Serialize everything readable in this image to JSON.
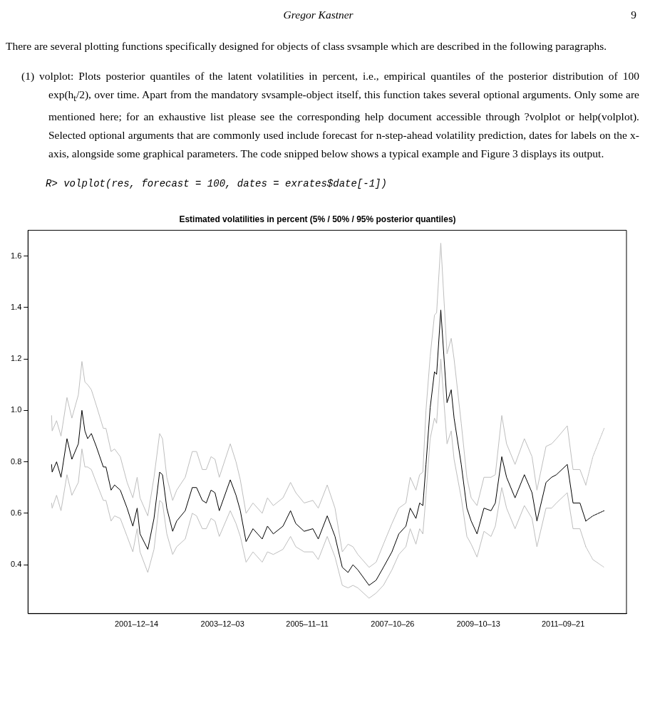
{
  "chart_data": {
    "type": "line",
    "title": "Estimated volatilities in percent (5% / 50% / 95% posterior quantiles)",
    "annotations": [
      "Gregor Kastner",
      "9",
      "There are several plotting functions specifically designed for objects of class svsample which are described in the following paragraphs.",
      "(1) volplot: Plots posterior quantiles of the latent volatilities in percent, i.e., empirical quantiles of the posterior distribution of 100 exp(h$_{t}$/2), over time. Apart from the mandatory svsample-object itself, this function takes several optional arguments. Only some are mentioned here; for an exhaustive list please see the corresponding help document accessible through ?volplot or help(volplot). Selected optional arguments that are commonly used include forecast for n-step-ahead volatility prediction, dates for labels on the x-axis, alongside some graphical parameters. The code snipped below shows a typical example and Figure 3 displays its output.",
      "R> volplot(res, forecast = 100, dates = exrates$date[-1])"
    ],
    "marker": "none",
    "xlim": [
      "1999-06-20",
      "2013-03-04"
    ],
    "xticks": [
      {
        "value": "2001-12-14",
        "label": "2001–12–14"
      },
      {
        "value": "2003-12-03",
        "label": "2003–12–03"
      },
      {
        "value": "2005-11-11",
        "label": "2005–11–11"
      },
      {
        "value": "2007-10-26",
        "label": "2007–10–26"
      },
      {
        "value": "2009-10-13",
        "label": "2009–10–13"
      },
      {
        "value": "2011-09-21",
        "label": "2011–09–21"
      }
    ],
    "ylim": [
      0.21,
      1.7
    ],
    "yticks": [
      0.4,
      0.6,
      0.8,
      {
        "value": 1,
        "label": "1.0"
      },
      1.2,
      1.4,
      1.6
    ],
    "series": [
      {
        "color": "#bebebe",
        "line_style": "solid",
        "x": [
          "2000-01-03",
          "2000-01-08",
          "2000-02-14",
          "2000-03-22",
          "2000-05-11",
          "2000-06-21",
          "2000-08-14",
          "2000-09-13",
          "2000-10-08",
          "2000-10-31",
          "2000-12-01",
          "2001-01-11",
          "2001-03-11",
          "2001-04-02",
          "2001-05-15",
          "2001-06-13",
          "2001-07-31",
          "2001-09-26",
          "2001-11-13",
          "2001-12-19",
          "2002-01-12",
          "2002-03-18",
          "2002-05-09",
          "2002-06-25",
          "2002-07-19",
          "2002-08-24",
          "2002-10-12",
          "2002-11-15",
          "2003-01-25",
          "2003-03-25",
          "2003-04-30",
          "2003-06-17",
          "2003-07-20",
          "2003-08-29",
          "2003-10-01",
          "2003-11-06",
          "2004-02-06",
          "2004-03-25",
          "2004-04-30",
          "2004-06-17",
          "2004-08-14",
          "2004-10-30",
          "2004-12-13",
          "2005-01-31",
          "2005-04-22",
          "2005-06-24",
          "2005-08-07",
          "2005-10-16",
          "2005-12-28",
          "2006-02-11",
          "2006-04-27",
          "2006-07-01",
          "2006-08-31",
          "2006-10-18",
          "2006-11-28",
          "2007-01-08",
          "2007-04-12",
          "2007-06-10",
          "2007-08-10",
          "2007-10-20",
          "2007-12-17",
          "2008-02-14",
          "2008-03-21",
          "2008-05-08",
          "2008-06-08",
          "2008-07-05",
          "2008-07-31",
          "2008-09-04",
          "2008-10-10",
          "2008-10-28",
          "2008-12-02",
          "2009-01-23",
          "2009-02-27",
          "2009-03-23",
          "2009-05-22",
          "2009-07-08",
          "2009-08-13",
          "2009-10-01",
          "2009-11-28",
          "2010-01-26",
          "2010-03-03",
          "2010-04-26",
          "2010-06-05",
          "2010-08-15",
          "2010-11-01",
          "2011-01-04",
          "2011-02-14",
          "2011-05-01",
          "2011-06-17",
          "2011-07-27",
          "2011-10-26",
          "2011-12-13",
          "2012-02-09",
          "2012-03-29"
        ],
        "values": [
          0.98,
          0.92,
          0.96,
          0.9,
          1.05,
          0.97,
          1.06,
          1.19,
          1.11,
          1.1,
          1.08,
          1.02,
          0.93,
          0.93,
          0.84,
          0.85,
          0.82,
          0.72,
          0.66,
          0.74,
          0.66,
          0.59,
          0.74,
          0.91,
          0.89,
          0.74,
          0.65,
          0.69,
          0.74,
          0.84,
          0.84,
          0.77,
          0.77,
          0.82,
          0.81,
          0.74,
          0.87,
          0.8,
          0.73,
          0.6,
          0.64,
          0.6,
          0.66,
          0.63,
          0.66,
          0.72,
          0.68,
          0.64,
          0.65,
          0.62,
          0.71,
          0.62,
          0.45,
          0.48,
          0.47,
          0.44,
          0.39,
          0.41,
          0.48,
          0.56,
          0.62,
          0.64,
          0.74,
          0.69,
          0.75,
          0.76,
          1.0,
          1.21,
          1.37,
          1.38,
          1.65,
          1.22,
          1.28,
          1.2,
          0.95,
          0.74,
          0.66,
          0.63,
          0.74,
          0.74,
          0.75,
          0.98,
          0.87,
          0.79,
          0.89,
          0.82,
          0.69,
          0.86,
          0.87,
          0.89,
          0.94,
          0.77,
          0.77,
          0.71
        ]
      },
      {
        "color": "#000000",
        "line_style": "solid",
        "x": [
          "2000-01-03",
          "2000-01-08",
          "2000-02-14",
          "2000-03-22",
          "2000-05-11",
          "2000-06-21",
          "2000-08-14",
          "2000-09-13",
          "2000-10-08",
          "2000-10-31",
          "2000-12-01",
          "2001-01-11",
          "2001-03-11",
          "2001-04-02",
          "2001-05-15",
          "2001-06-13",
          "2001-07-31",
          "2001-09-26",
          "2001-11-13",
          "2001-12-19",
          "2002-01-12",
          "2002-03-18",
          "2002-05-09",
          "2002-06-25",
          "2002-07-19",
          "2002-08-24",
          "2002-10-12",
          "2002-11-15",
          "2003-01-25",
          "2003-03-25",
          "2003-04-30",
          "2003-06-17",
          "2003-07-20",
          "2003-08-29",
          "2003-10-01",
          "2003-11-06",
          "2004-02-06",
          "2004-03-25",
          "2004-04-30",
          "2004-06-17",
          "2004-08-14",
          "2004-10-30",
          "2004-12-13",
          "2005-01-31",
          "2005-04-22",
          "2005-06-24",
          "2005-08-07",
          "2005-10-16",
          "2005-12-28",
          "2006-02-11",
          "2006-04-27",
          "2006-07-01",
          "2006-08-31",
          "2006-10-18",
          "2006-11-28",
          "2007-01-08",
          "2007-04-12",
          "2007-06-10",
          "2007-08-10",
          "2007-10-20",
          "2007-12-17",
          "2008-02-14",
          "2008-03-21",
          "2008-05-08",
          "2008-06-08",
          "2008-07-05",
          "2008-07-31",
          "2008-09-04",
          "2008-10-10",
          "2008-10-28",
          "2008-12-02",
          "2009-01-23",
          "2009-02-27",
          "2009-03-23",
          "2009-05-22",
          "2009-07-08",
          "2009-08-13",
          "2009-10-01",
          "2009-11-28",
          "2010-01-26",
          "2010-03-03",
          "2010-04-26",
          "2010-06-05",
          "2010-08-15",
          "2010-11-01",
          "2011-01-04",
          "2011-02-14",
          "2011-05-01",
          "2011-06-17",
          "2011-07-27",
          "2011-10-26",
          "2011-12-13",
          "2012-02-09",
          "2012-03-29"
        ],
        "values": [
          0.79,
          0.76,
          0.8,
          0.74,
          0.89,
          0.81,
          0.87,
          1.0,
          0.92,
          0.89,
          0.91,
          0.86,
          0.78,
          0.78,
          0.69,
          0.71,
          0.69,
          0.62,
          0.55,
          0.62,
          0.52,
          0.46,
          0.58,
          0.76,
          0.75,
          0.62,
          0.53,
          0.57,
          0.61,
          0.7,
          0.7,
          0.65,
          0.64,
          0.69,
          0.68,
          0.61,
          0.73,
          0.67,
          0.61,
          0.49,
          0.54,
          0.5,
          0.55,
          0.52,
          0.55,
          0.61,
          0.56,
          0.53,
          0.54,
          0.5,
          0.59,
          0.51,
          0.39,
          0.37,
          0.4,
          0.38,
          0.32,
          0.34,
          0.39,
          0.45,
          0.52,
          0.55,
          0.62,
          0.58,
          0.64,
          0.63,
          0.79,
          1.01,
          1.15,
          1.14,
          1.39,
          1.03,
          1.08,
          0.97,
          0.79,
          0.62,
          0.57,
          0.52,
          0.62,
          0.61,
          0.64,
          0.82,
          0.74,
          0.66,
          0.75,
          0.68,
          0.57,
          0.72,
          0.74,
          0.75,
          0.79,
          0.64,
          0.64,
          0.57
        ]
      },
      {
        "color": "#bebebe",
        "line_style": "solid",
        "x": [
          "2000-01-03",
          "2000-01-08",
          "2000-02-14",
          "2000-03-22",
          "2000-05-11",
          "2000-06-21",
          "2000-08-14",
          "2000-09-13",
          "2000-10-08",
          "2000-10-31",
          "2000-12-01",
          "2001-01-11",
          "2001-03-11",
          "2001-04-02",
          "2001-05-15",
          "2001-06-13",
          "2001-07-31",
          "2001-09-26",
          "2001-11-13",
          "2001-12-19",
          "2002-01-12",
          "2002-03-18",
          "2002-05-09",
          "2002-06-25",
          "2002-07-19",
          "2002-08-24",
          "2002-10-12",
          "2002-11-15",
          "2003-01-25",
          "2003-03-25",
          "2003-04-30",
          "2003-06-17",
          "2003-07-20",
          "2003-08-29",
          "2003-10-01",
          "2003-11-06",
          "2004-02-06",
          "2004-03-25",
          "2004-04-30",
          "2004-06-17",
          "2004-08-14",
          "2004-10-30",
          "2004-12-13",
          "2005-01-31",
          "2005-04-22",
          "2005-06-24",
          "2005-08-07",
          "2005-10-16",
          "2005-12-28",
          "2006-02-11",
          "2006-04-27",
          "2006-07-01",
          "2006-08-31",
          "2006-10-18",
          "2006-11-28",
          "2007-01-08",
          "2007-04-12",
          "2007-06-10",
          "2007-08-10",
          "2007-10-20",
          "2007-12-17",
          "2008-02-14",
          "2008-03-21",
          "2008-05-08",
          "2008-06-08",
          "2008-07-05",
          "2008-07-31",
          "2008-09-04",
          "2008-10-10",
          "2008-10-28",
          "2008-12-02",
          "2009-01-23",
          "2009-02-27",
          "2009-03-23",
          "2009-05-22",
          "2009-07-08",
          "2009-08-13",
          "2009-10-01",
          "2009-11-28",
          "2010-01-26",
          "2010-03-03",
          "2010-04-26",
          "2010-06-05",
          "2010-08-15",
          "2010-11-01",
          "2011-01-04",
          "2011-02-14",
          "2011-05-01",
          "2011-06-17",
          "2011-07-27",
          "2011-10-26",
          "2011-12-13",
          "2012-02-09",
          "2012-03-29"
        ],
        "values": [
          0.64,
          0.62,
          0.67,
          0.61,
          0.75,
          0.67,
          0.72,
          0.85,
          0.78,
          0.78,
          0.77,
          0.72,
          0.65,
          0.65,
          0.57,
          0.59,
          0.58,
          0.51,
          0.45,
          0.54,
          0.45,
          0.37,
          0.46,
          0.65,
          0.64,
          0.52,
          0.44,
          0.47,
          0.5,
          0.6,
          0.59,
          0.54,
          0.54,
          0.58,
          0.57,
          0.51,
          0.61,
          0.56,
          0.51,
          0.41,
          0.45,
          0.41,
          0.45,
          0.44,
          0.46,
          0.51,
          0.47,
          0.45,
          0.45,
          0.42,
          0.51,
          0.43,
          0.32,
          0.31,
          0.32,
          0.31,
          0.27,
          0.29,
          0.32,
          0.38,
          0.44,
          0.47,
          0.54,
          0.48,
          0.54,
          0.52,
          0.67,
          0.89,
          0.97,
          0.95,
          1.2,
          0.87,
          0.92,
          0.81,
          0.66,
          0.51,
          0.48,
          0.43,
          0.53,
          0.51,
          0.55,
          0.7,
          0.62,
          0.54,
          0.63,
          0.58,
          0.47,
          0.62,
          0.62,
          0.64,
          0.68,
          0.54,
          0.54,
          0.47
        ]
      },
      {
        "color": "#bebebe",
        "line_style": "dotted",
        "x": [
          "2012-03-29",
          "2012-05-27",
          "2012-08-29"
        ],
        "values": [
          0.71,
          0.82,
          0.93
        ]
      },
      {
        "color": "#000000",
        "line_style": "dashed",
        "x": [
          "2012-03-29",
          "2012-05-27",
          "2012-08-29"
        ],
        "values": [
          0.57,
          0.59,
          0.61
        ]
      },
      {
        "color": "#bebebe",
        "line_style": "dotted",
        "x": [
          "2012-03-29",
          "2012-05-27",
          "2012-08-29"
        ],
        "values": [
          0.47,
          0.42,
          0.39
        ]
      }
    ]
  }
}
